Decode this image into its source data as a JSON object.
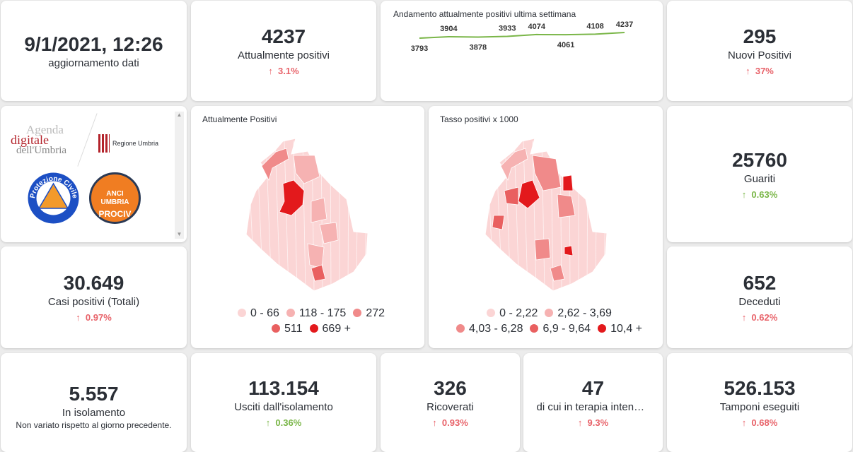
{
  "update": {
    "value": "9/1/2021, 12:26",
    "label": "aggiornamento dati"
  },
  "attualmente_positivi": {
    "value": "4237",
    "label": "Attualmente positivi",
    "delta": "3.1%",
    "trend": "up",
    "color": "#e8636a"
  },
  "sparkline": {
    "title": "Andamento attualmente positivi ultima settimana",
    "line_color": "#7ab648",
    "chart_data": {
      "type": "line",
      "values": [
        3793,
        3904,
        3878,
        3933,
        4074,
        4061,
        4108,
        4237
      ]
    }
  },
  "nuovi_positivi": {
    "value": "295",
    "label": "Nuovi Positivi",
    "delta": "37%",
    "trend": "up"
  },
  "logos": {
    "agenda1": "Agenda",
    "agenda2": "digitale",
    "agenda3": "dell'Umbria",
    "regione": "Regione Umbria",
    "protezione": "Protezione Civile",
    "protezione_sub": "Regione Umbria",
    "anci": "ANCI UMBRIA",
    "prociv": "PROCIV"
  },
  "map1": {
    "title": "Attualmente Positivi",
    "legend": [
      {
        "label": "0 - 66",
        "color": "#fbd5d5"
      },
      {
        "label": "118 - 175",
        "color": "#f6b2b2"
      },
      {
        "label": "272",
        "color": "#f08a8a"
      },
      {
        "label": "511",
        "color": "#e96060"
      },
      {
        "label": "669 +",
        "color": "#e3191c"
      }
    ]
  },
  "map2": {
    "title": "Tasso positivi x 1000",
    "legend": [
      {
        "label": "0 - 2,22",
        "color": "#fbd5d5"
      },
      {
        "label": "2,62 - 3,69",
        "color": "#f6b2b2"
      },
      {
        "label": "4,03 - 6,28",
        "color": "#f08a8a"
      },
      {
        "label": "6,9 - 9,64",
        "color": "#e96060"
      },
      {
        "label": "10,4 +",
        "color": "#e3191c"
      }
    ]
  },
  "guariti": {
    "value": "25760",
    "label": "Guariti",
    "delta": "0.63%",
    "trend": "up"
  },
  "casi_totali": {
    "value": "30.649",
    "label": "Casi positivi (Totali)",
    "delta": "0.97%",
    "trend": "up"
  },
  "deceduti": {
    "value": "652",
    "label": "Deceduti",
    "delta": "0.62%",
    "trend": "up"
  },
  "isolamento": {
    "value": "5.557",
    "label": "In isolamento",
    "note": "Non variato rispetto al giorno precedente."
  },
  "usciti": {
    "value": "113.154",
    "label": "Usciti dall'isolamento",
    "delta": "0.36%",
    "trend": "up"
  },
  "ricoverati": {
    "value": "326",
    "label": "Ricoverati",
    "delta": "0.93%",
    "trend": "up"
  },
  "terapia": {
    "value": "47",
    "label": "di cui in terapia intensiva",
    "delta": "9.3%",
    "trend": "up"
  },
  "tamponi": {
    "value": "526.153",
    "label": "Tamponi eseguiti",
    "delta": "0.68%",
    "trend": "up"
  },
  "arrow": "↑"
}
